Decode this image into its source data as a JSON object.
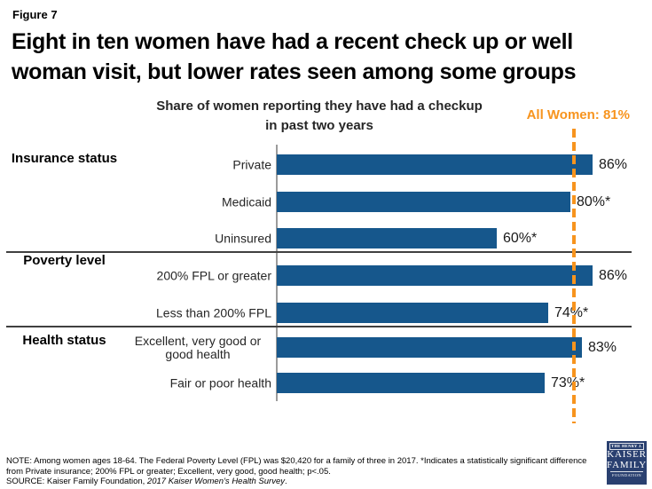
{
  "figure_label": "Figure 7",
  "title_lines": [
    "Eight in ten women have had a recent check up or well",
    "woman visit, but lower rates seen among some groups"
  ],
  "chart_data": {
    "type": "bar",
    "orientation": "horizontal",
    "title_lines": [
      "Share of women reporting they have had a checkup",
      "in past two years"
    ],
    "xlim": [
      0,
      100
    ],
    "unit": "%",
    "bar_color": "#16578C",
    "reference_line": {
      "label": "All Women: 81%",
      "value": 81,
      "color": "#F7941E",
      "style": "dashed"
    },
    "groups": [
      {
        "label": "Insurance status",
        "bars": [
          {
            "category": "Private",
            "value": 86,
            "value_label": "86%"
          },
          {
            "category": "Medicaid",
            "value": 80,
            "value_label": "80%*"
          },
          {
            "category": "Uninsured",
            "value": 60,
            "value_label": "60%*"
          }
        ]
      },
      {
        "label": "Poverty level",
        "bars": [
          {
            "category": "200% FPL or greater",
            "value": 86,
            "value_label": "86%"
          },
          {
            "category": "Less than 200% FPL",
            "value": 74,
            "value_label": "74%*"
          }
        ]
      },
      {
        "label": "Health status",
        "bars": [
          {
            "category": "Excellent, very good or good health",
            "value": 83,
            "value_label": "83%"
          },
          {
            "category": "Fair or poor health",
            "value": 73,
            "value_label": "73%*"
          }
        ]
      }
    ]
  },
  "footer": {
    "note_lines": [
      "NOTE:  Among women ages 18-64. The Federal Poverty Level (FPL) was $20,420 for a family of three in 2017. *Indicates a statistically significant difference",
      "from Private insurance; 200% FPL or greater; Excellent, very good, good health; p<.05."
    ],
    "source_prefix": "SOURCE:  Kaiser Family Foundation, ",
    "source_italic": "2017 Kaiser Women’s Health Survey",
    "source_suffix": "."
  },
  "logo": {
    "line1": "THE HENRY J.",
    "line2": "KAISER",
    "line3": "FAMILY",
    "line4": "FOUNDATION"
  }
}
